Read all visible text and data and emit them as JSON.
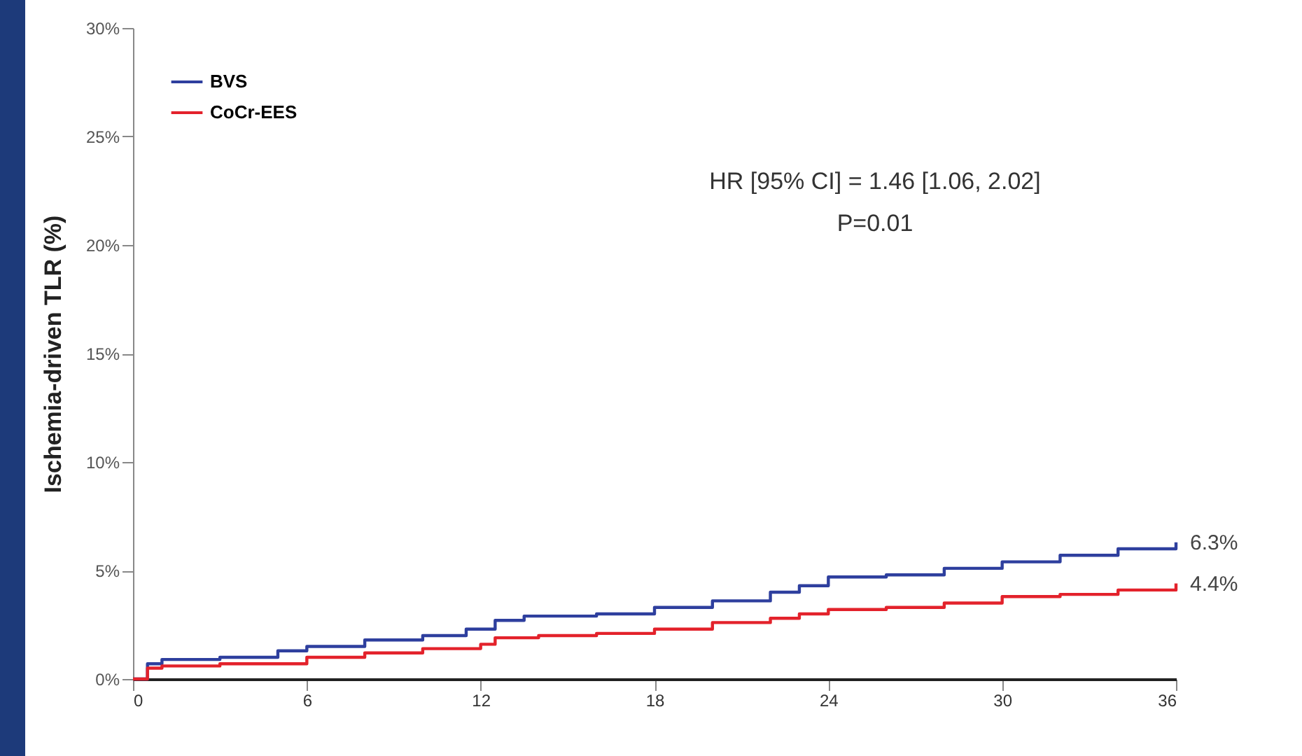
{
  "chart_data": {
    "type": "step",
    "ylabel": "Ischemia-driven TLR (%)",
    "annotations": [
      "HR [95% CI] = 1.46 [1.06, 2.02]\nP=0.01",
      {
        "text": "6.3%",
        "x": 36,
        "y": 6.3
      },
      {
        "text": "4.4%",
        "x": 36,
        "y": 4.4
      }
    ],
    "series": [
      {
        "name": "BVS",
        "color": "#2e3f9e",
        "x": [
          0,
          0.5,
          1,
          3,
          5,
          6,
          8,
          10,
          11.5,
          12.5,
          13.5,
          16,
          18,
          20,
          22,
          23,
          24,
          26,
          28,
          30,
          32,
          34,
          36
        ],
        "values": [
          0,
          0.7,
          0.9,
          1.0,
          1.3,
          1.5,
          1.8,
          2.0,
          2.3,
          2.7,
          2.9,
          3.0,
          3.3,
          3.6,
          4.0,
          4.3,
          4.7,
          4.8,
          5.1,
          5.4,
          5.7,
          6.0,
          6.3
        ]
      },
      {
        "name": "CoCr-EES",
        "color": "#e3222b",
        "x": [
          0,
          0.5,
          1,
          3,
          6,
          8,
          10,
          12,
          12.5,
          14,
          16,
          18,
          20,
          22,
          23,
          24,
          26,
          28,
          30,
          32,
          34,
          36
        ],
        "values": [
          0,
          0.5,
          0.6,
          0.7,
          1.0,
          1.2,
          1.4,
          1.6,
          1.9,
          2.0,
          2.1,
          2.3,
          2.6,
          2.8,
          3.0,
          3.2,
          3.3,
          3.5,
          3.8,
          3.9,
          4.1,
          4.4
        ]
      }
    ],
    "xlim": [
      0,
      36
    ],
    "xticks": [
      0,
      6,
      12,
      18,
      24,
      30,
      36
    ],
    "ylim": [
      0,
      30
    ],
    "yticks": [
      {
        "value": 0,
        "label": "0%"
      },
      {
        "value": 5,
        "label": "5%"
      },
      {
        "value": 10,
        "label": "10%"
      },
      {
        "value": 15,
        "label": "15%"
      },
      {
        "value": 20,
        "label": "20%"
      },
      {
        "value": 25,
        "label": "25%"
      },
      {
        "value": 30,
        "label": "30%"
      }
    ],
    "legend": "top left",
    "grid": false,
    "line_style": "solid"
  }
}
